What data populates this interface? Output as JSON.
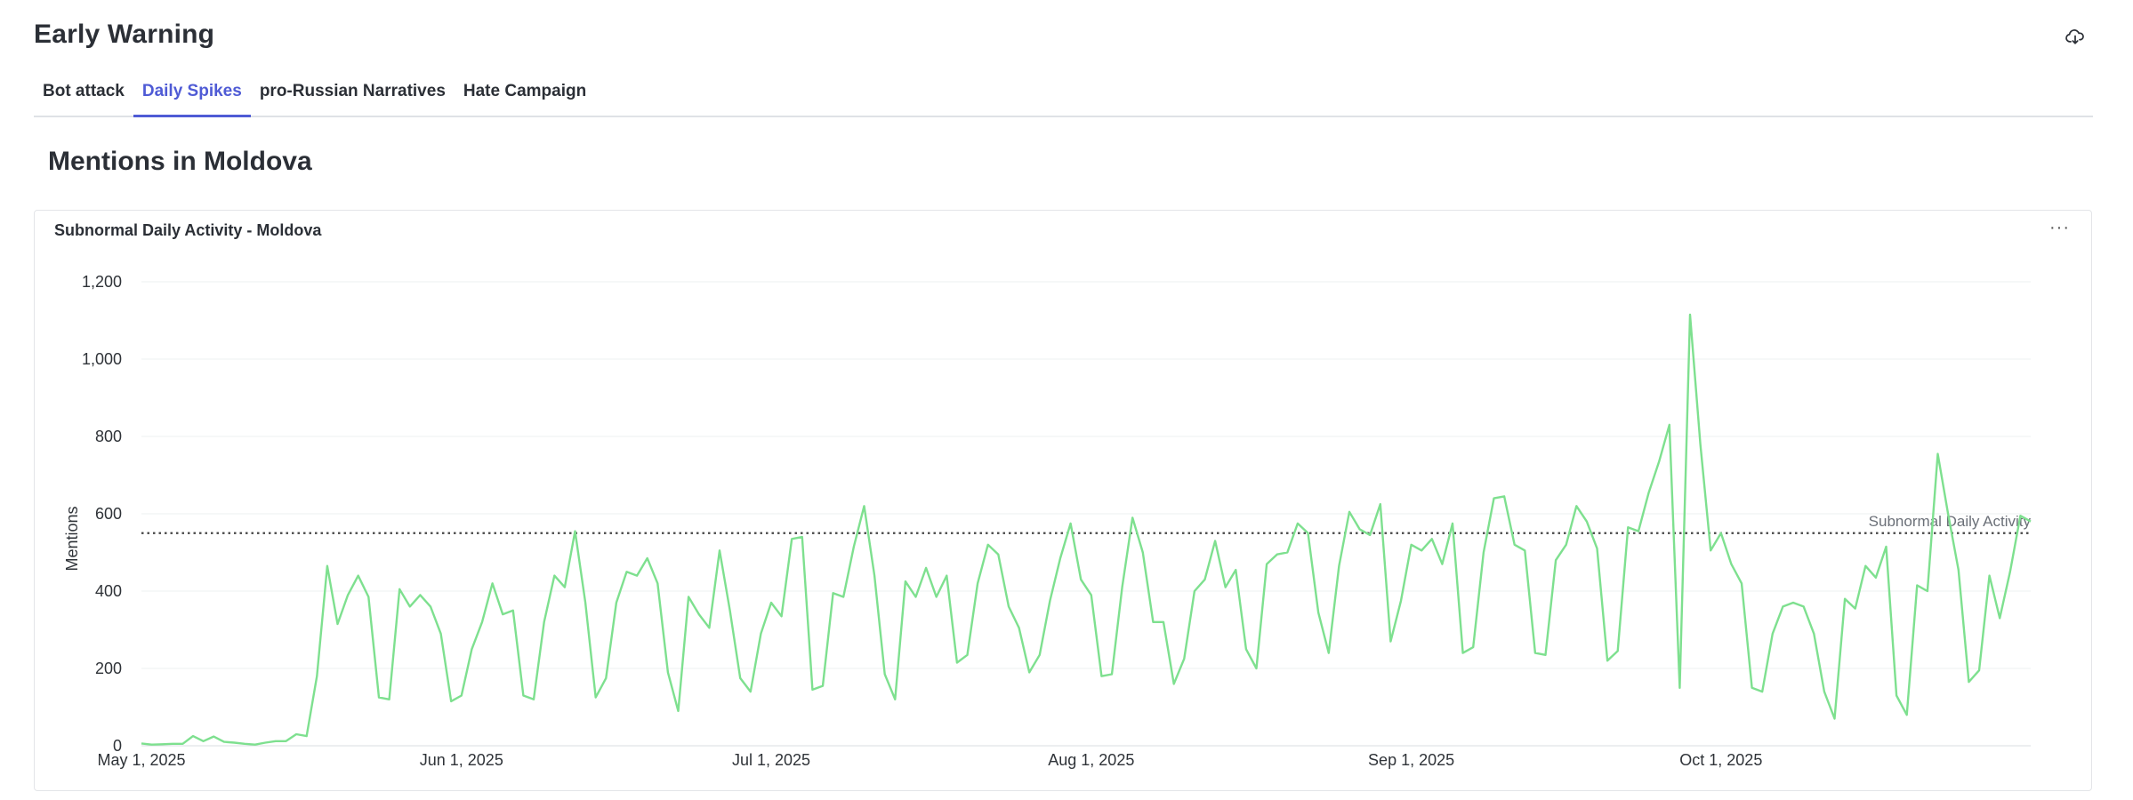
{
  "header": {
    "title": "Early Warning",
    "download_icon": "cloud-download-icon"
  },
  "tabs": [
    {
      "label": "Bot attack",
      "active": false
    },
    {
      "label": "Daily Spikes",
      "active": true
    },
    {
      "label": "pro-Russian Narratives",
      "active": false
    },
    {
      "label": "Hate Campaign",
      "active": false
    }
  ],
  "section": {
    "title": "Mentions in Moldova"
  },
  "panel": {
    "title": "Subnormal Daily Activity - Moldova",
    "menu_icon": "more-horizontal-icon",
    "menu_label": "···"
  },
  "colors": {
    "accent": "#4f5bd5",
    "line": "#7ee08f",
    "reference": "#444444"
  },
  "chart_data": {
    "type": "line",
    "title": "Subnormal Daily Activity - Moldova",
    "xlabel": "",
    "ylabel": "Mentions",
    "x_start": "2025-05-01",
    "x_ticks": [
      "May 1, 2025",
      "Jun 1, 2025",
      "Jul 1, 2025",
      "Aug 1, 2025",
      "Sep 1, 2025",
      "Oct 1, 2025"
    ],
    "y_ticks": [
      "0",
      "200",
      "400",
      "600",
      "800",
      "1,000",
      "1,200"
    ],
    "ylim": [
      0,
      1200
    ],
    "grid": "horizontal",
    "reference_line": {
      "label": "Subnormal Daily Activity",
      "value": 550
    },
    "series": [
      {
        "values": [
          6,
          3,
          4,
          5,
          5,
          25,
          12,
          24,
          10,
          8,
          5,
          3,
          8,
          12,
          12,
          30,
          25,
          180,
          465,
          315,
          390,
          440,
          385,
          125,
          120,
          405,
          360,
          390,
          360,
          290,
          115,
          130,
          250,
          320,
          420,
          340,
          350,
          130,
          120,
          320,
          440,
          410,
          555,
          370,
          125,
          175,
          370,
          450,
          440,
          485,
          420,
          190,
          90,
          385,
          340,
          305,
          505,
          350,
          175,
          140,
          290,
          370,
          335,
          535,
          540,
          145,
          155,
          395,
          385,
          515,
          620,
          440,
          185,
          120,
          425,
          385,
          460,
          385,
          440,
          215,
          235,
          420,
          520,
          495,
          360,
          305,
          190,
          235,
          375,
          485,
          575,
          430,
          390,
          180,
          185,
          410,
          590,
          500,
          320,
          320,
          160,
          225,
          400,
          430,
          530,
          410,
          455,
          250,
          200,
          470,
          495,
          500,
          575,
          550,
          345,
          240,
          465,
          605,
          560,
          545,
          625,
          270,
          375,
          520,
          505,
          535,
          470,
          575,
          240,
          255,
          500,
          640,
          645,
          520,
          505,
          240,
          235,
          480,
          520,
          620,
          580,
          510,
          220,
          245,
          565,
          555,
          655,
          735,
          830,
          150,
          1115,
          780,
          505,
          550,
          470,
          420,
          150,
          140,
          290,
          360,
          370,
          360,
          290,
          140,
          70,
          380,
          355,
          465,
          435,
          515,
          130,
          80,
          415,
          400,
          755,
          600,
          455,
          165,
          195,
          440,
          330,
          450,
          595,
          580
        ]
      }
    ]
  }
}
